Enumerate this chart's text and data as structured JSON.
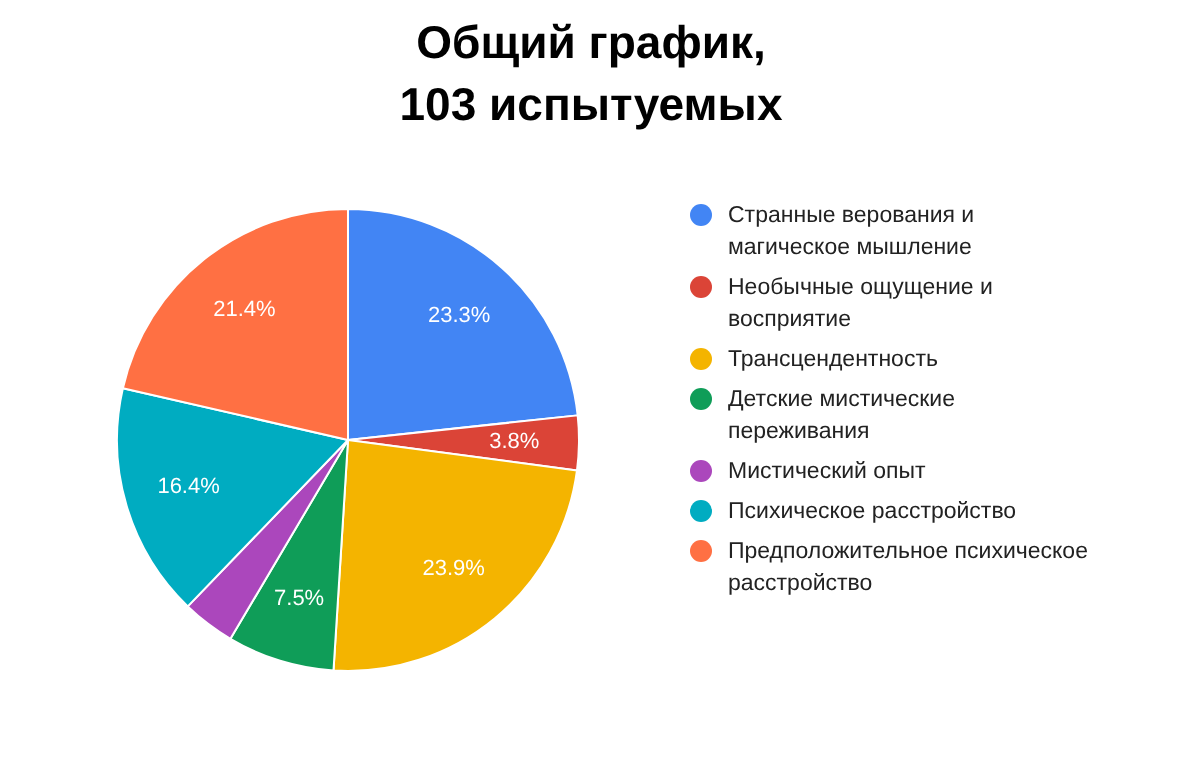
{
  "chart_data": {
    "type": "pie",
    "title": "Общий график,\n103 испытуемых",
    "categories": [
      "Странные верования и магическое мышление",
      "Необычные ощущение и восприятие",
      "Трансцендентность",
      "Детские мистические переживания",
      "Мистический опыт",
      "Психическое расстройство",
      "Предположительное психическое расстройство"
    ],
    "values": [
      23.3,
      3.8,
      23.9,
      7.5,
      3.7,
      16.4,
      21.4
    ],
    "value_labels": [
      "23.3%",
      "3.8%",
      "23.9%",
      "7.5%",
      null,
      "16.4%",
      "21.4%"
    ],
    "colors": [
      "#4285f4",
      "#db4437",
      "#f4b400",
      "#0f9d58",
      "#ab47bc",
      "#00acc1",
      "#ff7043"
    ],
    "legend": "right"
  }
}
